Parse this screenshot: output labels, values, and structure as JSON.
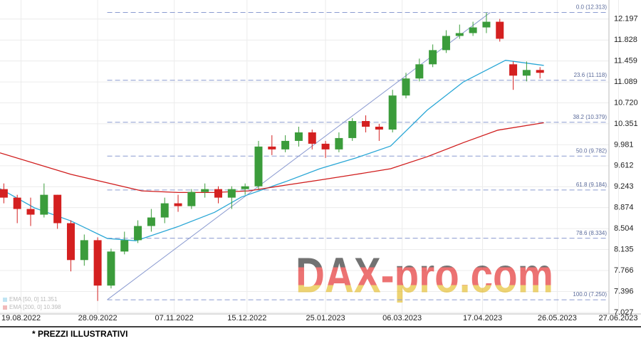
{
  "chart_data": {
    "type": "candlestick",
    "xlim": [
      "08.08.2022",
      "22.06.2023"
    ],
    "xticks": [
      "19.08.2022",
      "28.09.2022",
      "07.11.2022",
      "15.12.2022",
      "25.01.2023",
      "06.03.2023",
      "17.04.2023",
      "26.05.2023",
      "27.06.2023"
    ],
    "ylim": [
      7.0,
      12.32
    ],
    "yticks": [
      12.197,
      11.828,
      11.459,
      11.089,
      {
        "value": 10.72,
        "label": "10.720"
      },
      10.351,
      9.981,
      9.612,
      9.243,
      8.874,
      8.504,
      8.135,
      7.766,
      7.396,
      7.027
    ],
    "grid": true,
    "up_color": "#3b9c3b",
    "down_color": "#d42020",
    "x": [
      "10.08.2022",
      "17.08.2022",
      "24.08.2022",
      "31.08.2022",
      "07.09.2022",
      "14.09.2022",
      "21.09.2022",
      "28.09.2022",
      "05.10.2022",
      "12.10.2022",
      "19.10.2022",
      "26.10.2022",
      "02.11.2022",
      "09.11.2022",
      "16.11.2022",
      "23.11.2022",
      "30.11.2022",
      "07.12.2022",
      "14.12.2022",
      "21.12.2022",
      "28.12.2022",
      "04.01.2023",
      "11.01.2023",
      "18.01.2023",
      "25.01.2023",
      "01.02.2023",
      "08.02.2023",
      "15.02.2023",
      "22.02.2023",
      "01.03.2023",
      "08.03.2023",
      "15.03.2023",
      "22.03.2023",
      "29.03.2023",
      "05.04.2023",
      "12.04.2023",
      "19.04.2023",
      "26.04.2023",
      "03.05.2023",
      "10.05.2023",
      "17.05.2023"
    ],
    "open": [
      9.2,
      9.05,
      8.85,
      8.75,
      9.1,
      8.6,
      7.95,
      8.3,
      7.5,
      8.1,
      8.3,
      8.55,
      8.7,
      8.95,
      8.9,
      9.15,
      9.2,
      9.05,
      9.2,
      9.25,
      9.95,
      9.9,
      10.05,
      10.2,
      10.0,
      9.9,
      10.1,
      10.4,
      10.3,
      10.25,
      10.85,
      11.15,
      11.4,
      11.65,
      11.9,
      11.95,
      12.05,
      12.15,
      11.4,
      11.2,
      11.3
    ],
    "high": [
      9.3,
      9.1,
      9.05,
      9.3,
      9.1,
      8.65,
      8.4,
      8.35,
      8.15,
      8.45,
      8.65,
      8.85,
      9.05,
      9.1,
      9.2,
      9.3,
      9.25,
      9.25,
      9.3,
      10.05,
      10.15,
      10.15,
      10.3,
      10.25,
      10.05,
      10.2,
      10.45,
      10.5,
      10.35,
      10.95,
      11.25,
      11.5,
      11.75,
      12.0,
      12.1,
      12.15,
      12.31,
      12.2,
      11.45,
      11.45,
      11.35
    ],
    "low": [
      8.95,
      8.6,
      8.55,
      8.7,
      8.5,
      7.75,
      7.85,
      7.23,
      7.45,
      8.05,
      8.25,
      8.45,
      8.6,
      8.8,
      8.85,
      9.05,
      8.95,
      8.85,
      9.1,
      9.2,
      9.8,
      9.85,
      9.95,
      9.9,
      9.75,
      9.85,
      10.05,
      10.2,
      10.05,
      10.2,
      10.8,
      11.1,
      11.35,
      11.6,
      11.85,
      11.9,
      11.95,
      11.8,
      10.95,
      11.1,
      11.15
    ],
    "close": [
      9.05,
      8.85,
      8.75,
      9.1,
      8.6,
      7.95,
      8.3,
      7.5,
      8.1,
      8.3,
      8.55,
      8.7,
      8.95,
      8.9,
      9.15,
      9.2,
      9.05,
      9.2,
      9.25,
      9.95,
      9.9,
      10.05,
      10.2,
      10.0,
      9.9,
      10.1,
      10.4,
      10.3,
      10.25,
      10.85,
      11.15,
      11.4,
      11.65,
      11.9,
      11.95,
      12.05,
      12.15,
      11.85,
      11.2,
      11.3,
      11.25
    ],
    "lines": [
      {
        "name": "EMA [50, 0] 11.351",
        "color": "#2aa7d6",
        "x": [
          "08.08.2022",
          "26.08.2022",
          "14.09.2022",
          "03.10.2022",
          "18.10.2022",
          "09.11.2022",
          "28.11.2022",
          "12.12.2022",
          "04.01.2023",
          "22.01.2023",
          "10.02.2023",
          "28.02.2023",
          "19.03.2023",
          "07.04.2023",
          "29.04.2023",
          "19.05.2023"
        ],
        "values": [
          9.21,
          8.87,
          8.64,
          8.33,
          8.29,
          8.54,
          8.79,
          9.06,
          9.33,
          9.56,
          9.75,
          9.96,
          10.59,
          11.09,
          11.47,
          11.38
        ]
      },
      {
        "name": "EMA [200, 0] 10.398",
        "color": "#d01c1c",
        "x": [
          "08.08.2022",
          "14.09.2022",
          "21.10.2022",
          "09.11.2022",
          "28.11.2022",
          "16.12.2022",
          "04.01.2023",
          "22.01.2023",
          "10.02.2023",
          "28.02.2023",
          "19.03.2023",
          "07.04.2023",
          "25.04.2023",
          "19.05.2023"
        ],
        "values": [
          9.84,
          9.46,
          9.17,
          9.14,
          9.14,
          9.17,
          9.27,
          9.36,
          9.46,
          9.56,
          9.77,
          10.02,
          10.24,
          10.37
        ]
      }
    ],
    "fib": {
      "color": "#8a9ad0",
      "x": [
        "03.10.2022",
        "21.04.2023"
      ],
      "levels": [
        {
          "label": "0.0 (12.313)",
          "value": 12.313
        },
        {
          "label": "23.6 (11.118)",
          "value": 11.118
        },
        {
          "label": "38.2 (10.379)",
          "value": 10.379
        },
        {
          "label": "50.0 (9.782)",
          "value": 9.782
        },
        {
          "label": "61.8 (9.184)",
          "value": 9.184
        },
        {
          "label": "78.6 (8.334)",
          "value": 8.334
        },
        {
          "label": "100.0 (7.250)",
          "value": 7.25
        }
      ]
    },
    "watermark": "DAX-pro.com",
    "footnote": "* PREZZI ILLUSTRATIVI"
  }
}
